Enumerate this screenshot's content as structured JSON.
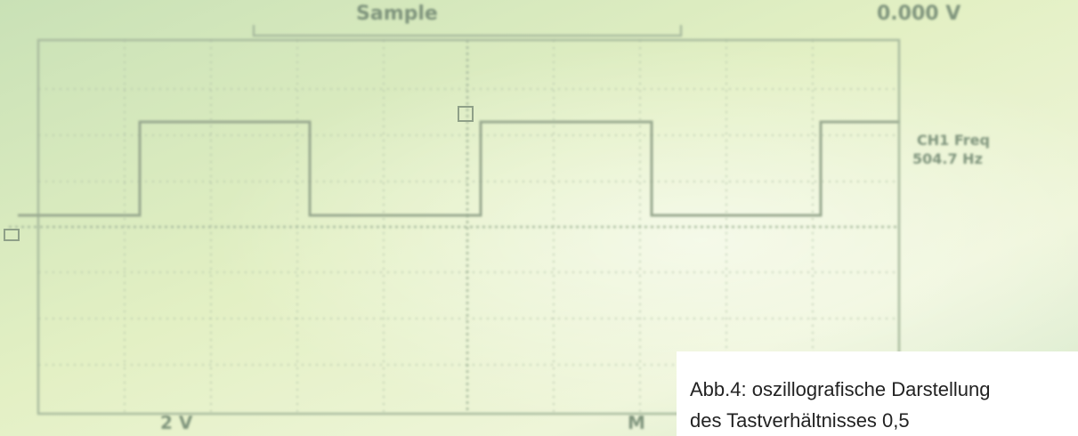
{
  "scope": {
    "top_bar": {
      "mode": "Sample",
      "trigger_level": "0.000 V"
    },
    "measurement": {
      "label": "CH1 Freq",
      "value": "504.7 Hz"
    },
    "channel_scale": "2 V",
    "footer_mark": "M"
  },
  "caption": {
    "line1": "Abb.4: oszillografische Darstellung",
    "line2": "des Tastverhältnisses 0,5"
  }
}
